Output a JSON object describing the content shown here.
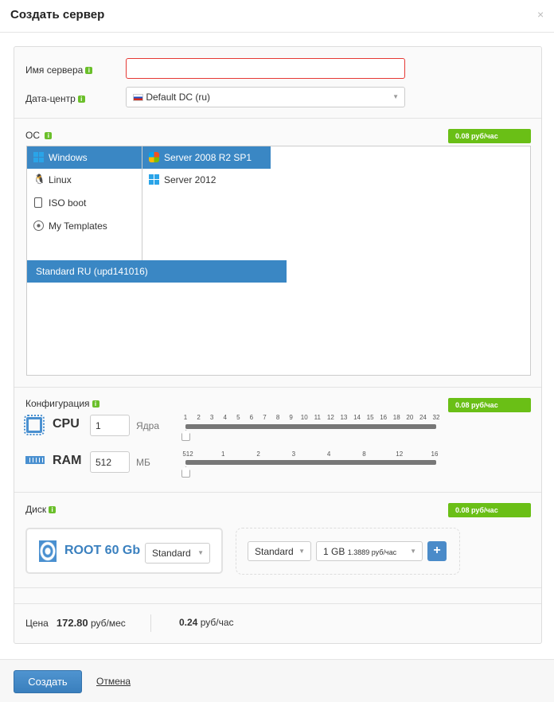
{
  "dialog": {
    "title": "Создать сервер",
    "close": "×"
  },
  "fields": {
    "name_label": "Имя сервера",
    "name_value": "",
    "dc_label": "Дата-центр",
    "dc_value": "Default DC (ru)"
  },
  "info_glyph": "i",
  "os": {
    "label": "ОС",
    "price": "0.08 руб/час",
    "families": [
      {
        "label": "Windows",
        "icon": "windows-icon",
        "selected": true
      },
      {
        "label": "Linux",
        "icon": "linux-icon"
      },
      {
        "label": "ISO boot",
        "icon": "iso-icon"
      },
      {
        "label": "My Templates",
        "icon": "disc-icon"
      }
    ],
    "versions": [
      {
        "label": "Server 2008 R2 SP1",
        "icon": "windows-flag-icon",
        "selected": true
      },
      {
        "label": "Server 2012",
        "icon": "windows-icon"
      }
    ],
    "templates": [
      {
        "label": "Standard RU (upd141016)",
        "selected": true
      }
    ]
  },
  "config": {
    "label": "Конфигурация",
    "price": "0.08 руб/час",
    "cpu": {
      "label": "CPU",
      "value": "1",
      "unit": "Ядра",
      "ticks": [
        "1",
        "2",
        "3",
        "4",
        "5",
        "6",
        "7",
        "8",
        "9",
        "10",
        "11",
        "12",
        "13",
        "14",
        "15",
        "16",
        "18",
        "20",
        "24",
        "32"
      ]
    },
    "ram": {
      "label": "RAM",
      "value": "512",
      "unit": "МБ",
      "ticks": [
        "512",
        "1",
        "2",
        "3",
        "4",
        "8",
        "12",
        "16"
      ]
    }
  },
  "disk": {
    "label": "Диск",
    "price": "0.08 руб/час",
    "root_label": "ROOT 60 Gb",
    "root_type": "Standard",
    "new_type": "Standard",
    "new_size": "1 GB",
    "new_size_price": "1.3889 руб/час",
    "add": "+"
  },
  "total": {
    "label": "Цена",
    "monthly": "172.80",
    "monthly_unit": "руб/мес",
    "hourly": "0.24",
    "hourly_unit": "руб/час"
  },
  "footer": {
    "create": "Создать",
    "cancel": "Отмена"
  },
  "colors": {
    "accent": "#3a87c4",
    "price_badge": "#6abf16",
    "error_border": "#e53935"
  }
}
